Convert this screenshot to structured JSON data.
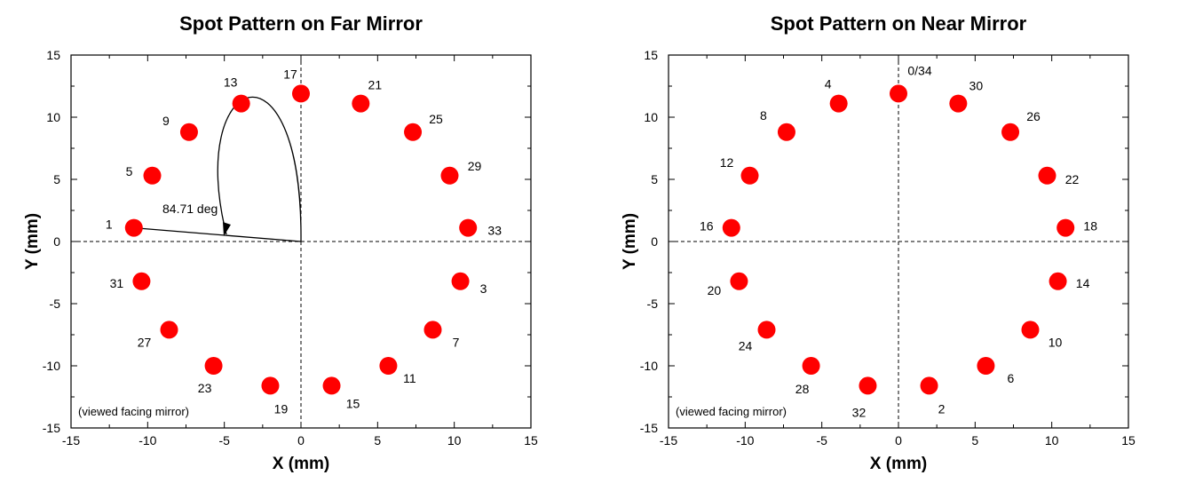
{
  "chart_data": [
    {
      "type": "scatter",
      "title": "Spot Pattern on Far Mirror",
      "xlabel": "X (mm)",
      "ylabel": "Y (mm)",
      "xlim": [
        -15,
        15
      ],
      "ylim": [
        -15,
        15
      ],
      "xticks": [
        -15,
        -10,
        -5,
        0,
        5,
        10,
        15
      ],
      "yticks": [
        -15,
        -10,
        -5,
        0,
        5,
        10,
        15
      ],
      "grid": false,
      "marker_color": "#ff0000",
      "annotation": "(viewed facing mirror)",
      "angle_annotation": {
        "label": "84.71 deg",
        "angle_deg": 84.71
      },
      "points": [
        {
          "x": -10.9,
          "y": 1.1,
          "label": "1"
        },
        {
          "x": 10.4,
          "y": -3.2,
          "label": "3"
        },
        {
          "x": -9.7,
          "y": 5.3,
          "label": "5"
        },
        {
          "x": 8.6,
          "y": -7.1,
          "label": "7"
        },
        {
          "x": -7.3,
          "y": 8.8,
          "label": "9"
        },
        {
          "x": 5.7,
          "y": -10.0,
          "label": "11"
        },
        {
          "x": -3.9,
          "y": 11.1,
          "label": "13"
        },
        {
          "x": 2.0,
          "y": -11.6,
          "label": "15"
        },
        {
          "x": 0.0,
          "y": 11.9,
          "label": "17"
        },
        {
          "x": -2.0,
          "y": -11.6,
          "label": "19"
        },
        {
          "x": 3.9,
          "y": 11.1,
          "label": "21"
        },
        {
          "x": -5.7,
          "y": -10.0,
          "label": "23"
        },
        {
          "x": 7.3,
          "y": 8.8,
          "label": "25"
        },
        {
          "x": -8.6,
          "y": -7.1,
          "label": "27"
        },
        {
          "x": 9.7,
          "y": 5.3,
          "label": "29"
        },
        {
          "x": -10.4,
          "y": -3.2,
          "label": "31"
        },
        {
          "x": 10.9,
          "y": 1.1,
          "label": "33"
        }
      ]
    },
    {
      "type": "scatter",
      "title": "Spot Pattern on Near Mirror",
      "xlabel": "X (mm)",
      "ylabel": "Y (mm)",
      "xlim": [
        -15,
        15
      ],
      "ylim": [
        -15,
        15
      ],
      "xticks": [
        -15,
        -10,
        -5,
        0,
        5,
        10,
        15
      ],
      "yticks": [
        -15,
        -10,
        -5,
        0,
        5,
        10,
        15
      ],
      "grid": false,
      "marker_color": "#ff0000",
      "annotation": "(viewed facing mirror)",
      "points": [
        {
          "x": 0.0,
          "y": 11.9,
          "label": "0/34"
        },
        {
          "x": 2.0,
          "y": -11.6,
          "label": "2"
        },
        {
          "x": -3.9,
          "y": 11.1,
          "label": "4"
        },
        {
          "x": 5.7,
          "y": -10.0,
          "label": "6"
        },
        {
          "x": -7.3,
          "y": 8.8,
          "label": "8"
        },
        {
          "x": 8.6,
          "y": -7.1,
          "label": "10"
        },
        {
          "x": -9.7,
          "y": 5.3,
          "label": "12"
        },
        {
          "x": 10.4,
          "y": -3.2,
          "label": "14"
        },
        {
          "x": -10.9,
          "y": 1.1,
          "label": "16"
        },
        {
          "x": 10.9,
          "y": 1.1,
          "label": "18"
        },
        {
          "x": -10.4,
          "y": -3.2,
          "label": "20"
        },
        {
          "x": 9.7,
          "y": 5.3,
          "label": "22"
        },
        {
          "x": -8.6,
          "y": -7.1,
          "label": "24"
        },
        {
          "x": 7.3,
          "y": 8.8,
          "label": "26"
        },
        {
          "x": -5.7,
          "y": -10.0,
          "label": "28"
        },
        {
          "x": 3.9,
          "y": 11.1,
          "label": "30"
        },
        {
          "x": -2.0,
          "y": -11.6,
          "label": "32"
        }
      ]
    }
  ]
}
